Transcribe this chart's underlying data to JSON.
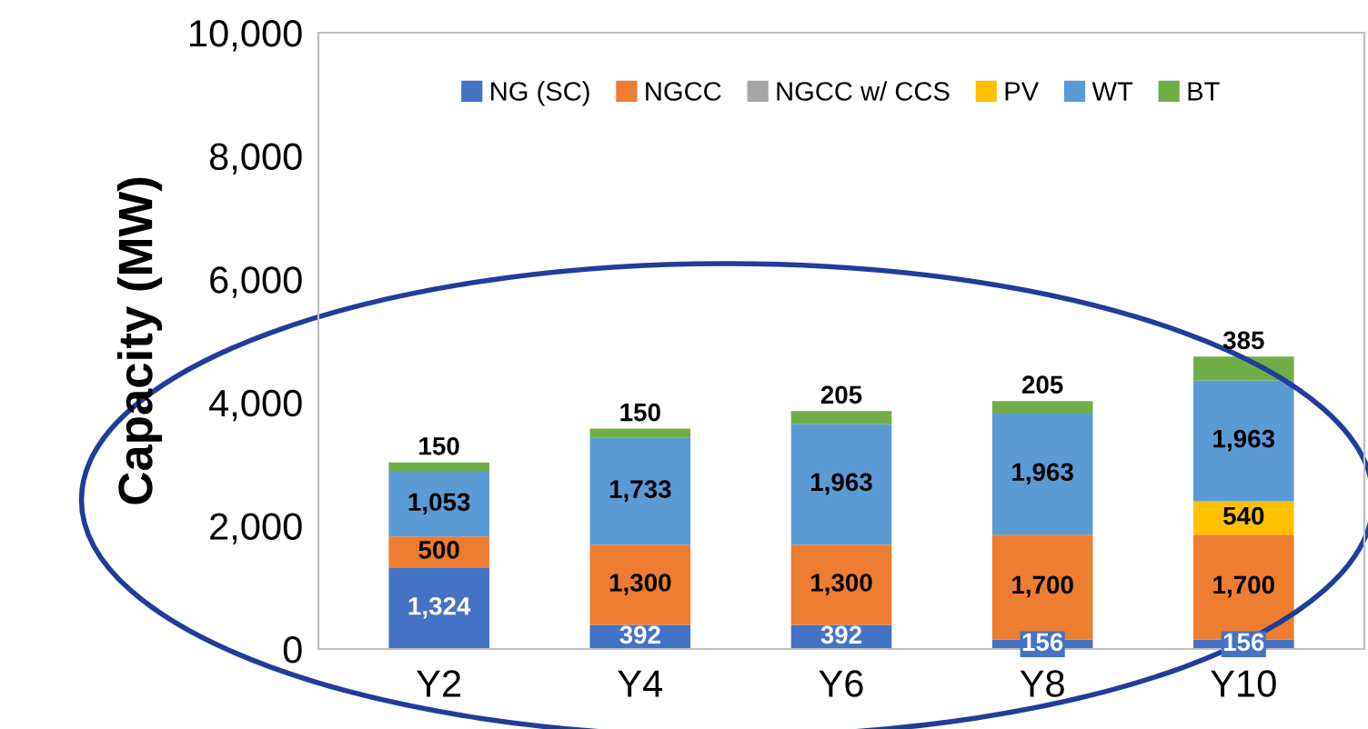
{
  "chart_data": {
    "type": "bar",
    "stacked": true,
    "ylabel": "Capacity (MW)",
    "categories": [
      "Y2",
      "Y4",
      "Y6",
      "Y8",
      "Y10"
    ],
    "series": [
      {
        "name": "NG (SC)",
        "color": "#4472c4",
        "values": [
          1324,
          392,
          392,
          156,
          156
        ],
        "value_labels": [
          "1,324",
          "392",
          "392",
          "156",
          "156"
        ]
      },
      {
        "name": "NGCC",
        "color": "#ed7d31",
        "values": [
          500,
          1300,
          1300,
          1700,
          1700
        ],
        "value_labels": [
          "500",
          "1,300",
          "1,300",
          "1,700",
          "1,700"
        ]
      },
      {
        "name": "NGCC w/ CCS",
        "color": "#a5a5a5",
        "values": [
          0,
          0,
          0,
          0,
          0
        ],
        "value_labels": [
          null,
          null,
          null,
          null,
          null
        ]
      },
      {
        "name": "PV",
        "color": "#ffc000",
        "values": [
          0,
          0,
          0,
          0,
          540
        ],
        "value_labels": [
          null,
          null,
          null,
          null,
          "540"
        ]
      },
      {
        "name": "WT",
        "color": "#5b9bd5",
        "values": [
          1053,
          1733,
          1963,
          1963,
          1963
        ],
        "value_labels": [
          "1,053",
          "1,733",
          "1,963",
          "1,963",
          "1,963"
        ]
      },
      {
        "name": "BT",
        "color": "#70ad47",
        "values": [
          150,
          150,
          205,
          205,
          385
        ],
        "value_labels": [
          "150",
          "150",
          "205",
          "205",
          "385"
        ]
      }
    ],
    "ylim": [
      0,
      10000
    ],
    "yticks": [
      0,
      {
        "value": 2000,
        "label": "2,000"
      },
      {
        "value": 4000,
        "label": "4,000"
      },
      {
        "value": 6000,
        "label": "6,000"
      },
      {
        "value": 8000,
        "label": "8,000"
      },
      {
        "value": 10000,
        "label": "10,000"
      }
    ],
    "grid": false,
    "legend": "top"
  }
}
